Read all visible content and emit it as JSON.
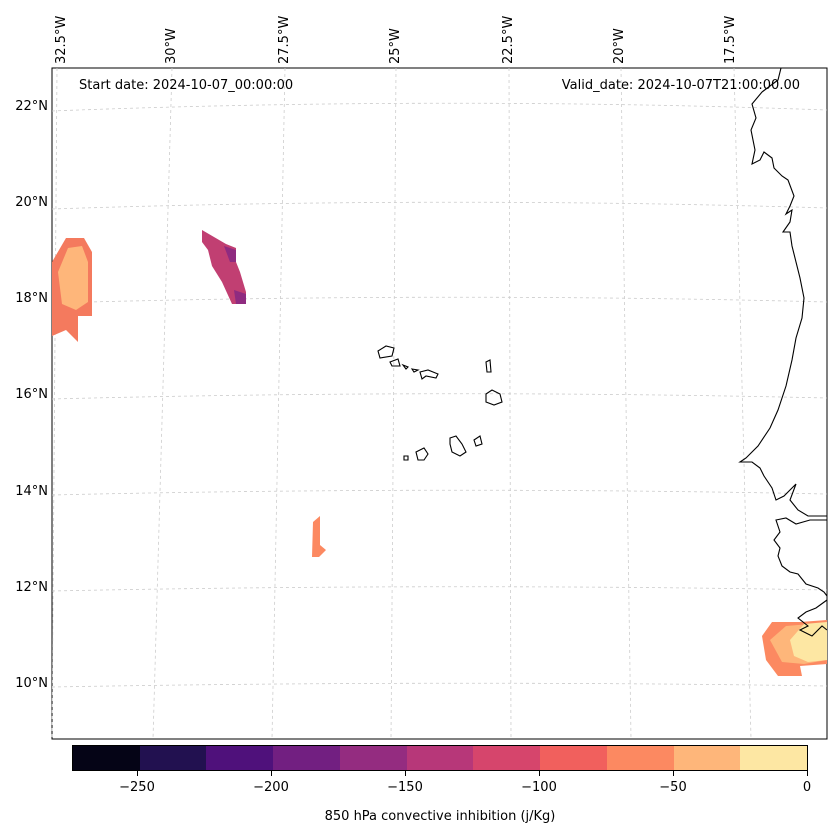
{
  "header": {
    "start_date": "Start date: 2024-10-07_00:00:00",
    "valid_date": "Valid_date: 2024-10-07T21:00:00.00"
  },
  "axes": {
    "lat_labels": [
      "22°N",
      "20°N",
      "18°N",
      "16°N",
      "14°N",
      "12°N",
      "10°N"
    ],
    "lon_labels": [
      "32.5°W",
      "30°W",
      "27.5°W",
      "25°W",
      "22.5°W",
      "20°W",
      "17.5°W"
    ]
  },
  "colorbar": {
    "title": "850 hPa convective inhibition (j/Kg)",
    "tick_labels": [
      "−250",
      "−200",
      "−150",
      "−100",
      "−50",
      "0"
    ],
    "colors": [
      "#050416",
      "#221150",
      "#4f117b",
      "#721f81",
      "#942c80",
      "#b73779",
      "#d6456c",
      "#f1605d",
      "#fc8961",
      "#feb67a",
      "#fde7a3"
    ]
  }
}
